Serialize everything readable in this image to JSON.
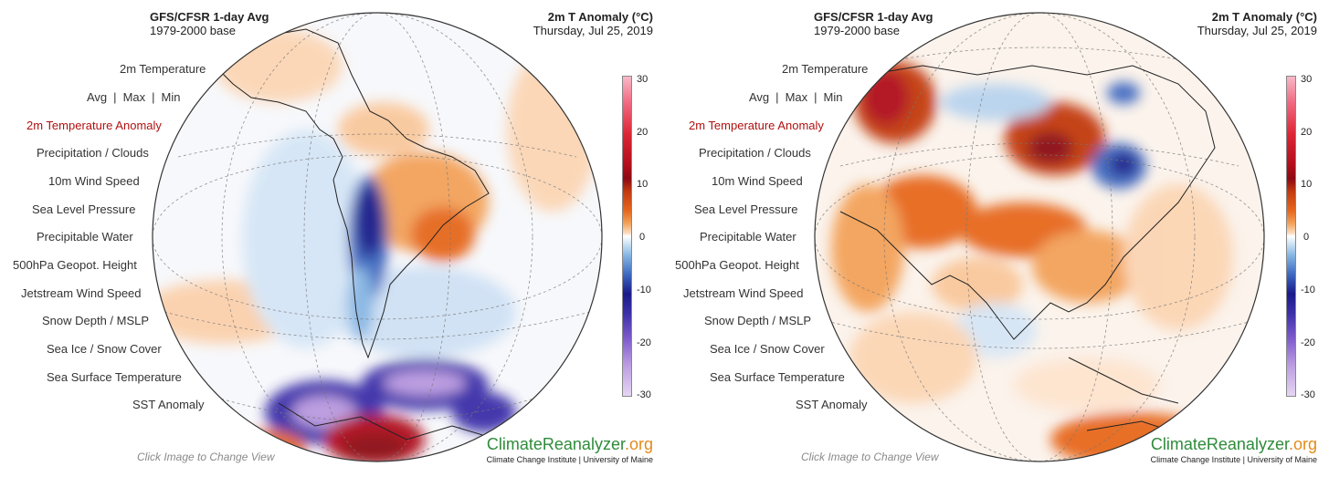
{
  "panels": [
    {
      "header": {
        "model_title": "GFS/CFSR 1-day Avg",
        "base_period": "1979-2000 base",
        "variable_title": "2m T Anomaly (°C)",
        "date": "Thursday, Jul 25, 2019"
      },
      "globe_view": "South America",
      "menu": {
        "section_title": "2m Temperature",
        "avg_label": "Avg",
        "max_label": "Max",
        "min_label": "Min",
        "separator": "|",
        "items": [
          "2m Temperature Anomaly",
          "Precipitation / Clouds",
          "10m Wind Speed",
          "Sea Level Pressure",
          "Precipitable Water",
          "500hPa Geopot. Height",
          "Jetstream Wind Speed",
          "Snow Depth / MSLP",
          "Sea Ice / Snow Cover",
          "Sea Surface Temperature",
          "SST Anomaly"
        ],
        "active_item": "2m Temperature Anomaly"
      },
      "colorbar_ticks": [
        "30",
        "20",
        "10",
        "0",
        "-10",
        "-20",
        "-30"
      ],
      "footer": {
        "hint": "Click Image to Change View",
        "brand_climate": "ClimateReanalyzer",
        "brand_org": ".org",
        "brand_sub": "Climate Change Institute | University of Maine"
      }
    },
    {
      "header": {
        "model_title": "GFS/CFSR 1-day Avg",
        "base_period": "1979-2000 base",
        "variable_title": "2m T Anomaly (°C)",
        "date": "Thursday, Jul 25, 2019"
      },
      "globe_view": "Asia",
      "menu": {
        "section_title": "2m Temperature",
        "avg_label": "Avg",
        "max_label": "Max",
        "min_label": "Min",
        "separator": "|",
        "items": [
          "2m Temperature Anomaly",
          "Precipitation / Clouds",
          "10m Wind Speed",
          "Sea Level Pressure",
          "Precipitable Water",
          "500hPa Geopot. Height",
          "Jetstream Wind Speed",
          "Snow Depth / MSLP",
          "Sea Ice / Snow Cover",
          "Sea Surface Temperature",
          "SST Anomaly"
        ],
        "active_item": "2m Temperature Anomaly"
      },
      "colorbar_ticks": [
        "30",
        "20",
        "10",
        "0",
        "-10",
        "-20",
        "-30"
      ],
      "footer": {
        "hint": "Click Image to Change View",
        "brand_climate": "ClimateReanalyzer",
        "brand_org": ".org",
        "brand_sub": "Climate Change Institute | University of Maine"
      }
    }
  ],
  "colors": {
    "active_menu": "#b01010",
    "brand_green": "#2e8b3a",
    "brand_orange": "#e38b1c",
    "warm_anomaly": "#e6671e",
    "cold_anomaly": "#1a1a8a"
  }
}
